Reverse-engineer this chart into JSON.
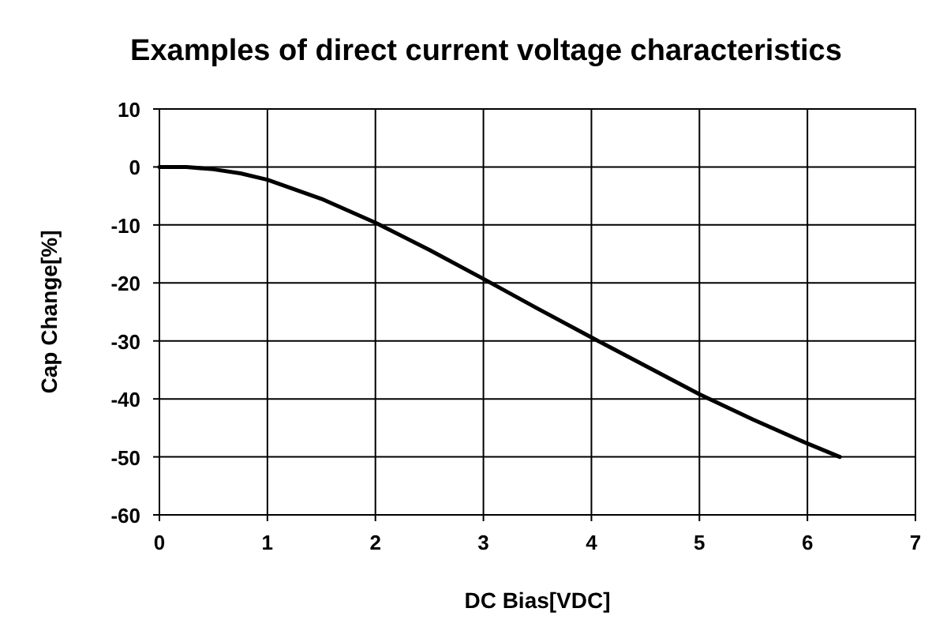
{
  "chart_data": {
    "type": "line",
    "title": "Examples of direct current voltage characteristics",
    "xlabel": "DC Bias[VDC]",
    "ylabel": "Cap Change[%]",
    "x": [
      0,
      0.25,
      0.5,
      0.75,
      1,
      1.5,
      2,
      2.5,
      3,
      3.5,
      4,
      4.5,
      5,
      5.5,
      6,
      6.3
    ],
    "series": [
      {
        "color": "#000000",
        "values": [
          0,
          0,
          -0.4,
          -1.1,
          -2.2,
          -5.5,
          -9.6,
          -14.3,
          -19.3,
          -24.4,
          -29.4,
          -34.3,
          -39.2,
          -43.6,
          -47.7,
          -50
        ]
      }
    ],
    "xlim": [
      0,
      7
    ],
    "xticks": [
      0,
      1,
      2,
      3,
      4,
      5,
      6,
      7
    ],
    "ylim": [
      -60,
      10
    ],
    "yticks": [
      -60,
      -50,
      -40,
      -30,
      -20,
      -10,
      0,
      10
    ],
    "grid": true,
    "marker": "none",
    "line_style": "solid"
  }
}
